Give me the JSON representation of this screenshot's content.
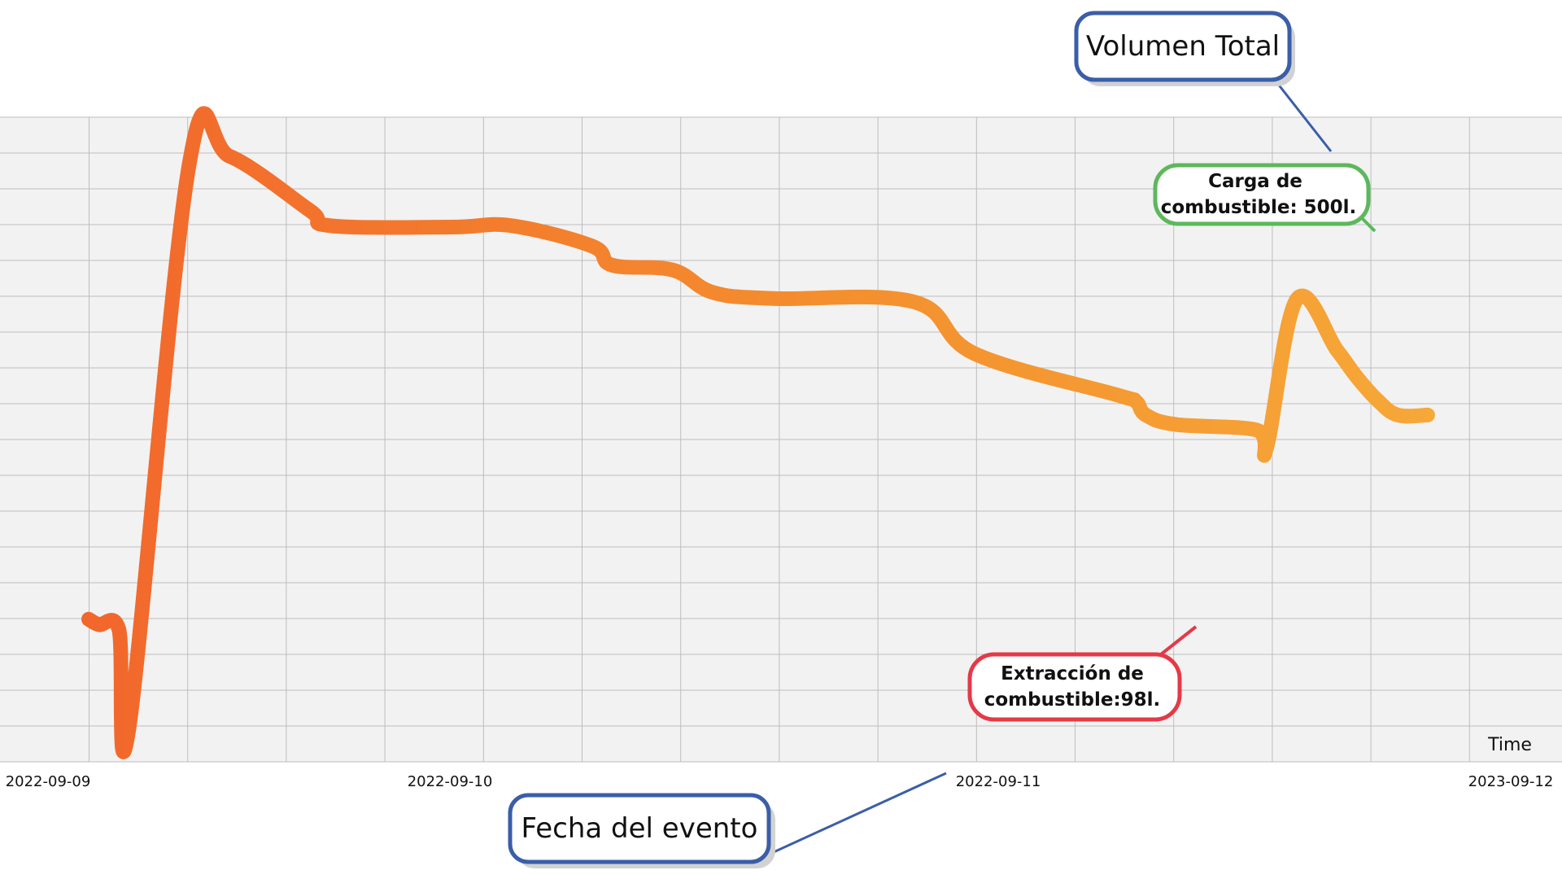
{
  "chart_data": {
    "type": "line",
    "x": [
      "2022-09-09 00:00",
      "2022-09-09 00:30",
      "2022-09-09 01:30",
      "2022-09-09 02:00",
      "2022-09-09 05:00",
      "2022-09-09 07:00",
      "2022-09-09 11:00",
      "2022-09-09 12:00",
      "2022-09-09 18:00",
      "2022-09-09 21:00",
      "2022-09-10 01:00",
      "2022-09-10 02:00",
      "2022-09-10 05:00",
      "2022-09-10 07:00",
      "2022-09-10 10:00",
      "2022-09-10 17:00",
      "2022-09-10 20:00",
      "2022-09-11 03:00",
      "2022-09-11 04:00",
      "2022-09-11 04:30",
      "2022-09-11 06:00",
      "2022-09-11 10:00",
      "2022-09-11 10:30",
      "2022-09-11 12:00",
      "2022-09-11 14:00",
      "2022-09-11 15:00",
      "2022-09-11 16:00",
      "2022-09-11 17:00",
      "2022-09-11 18:30"
    ],
    "series": [
      {
        "values": [
          170,
          162,
          155,
          10,
          840,
          850,
          770,
          748,
          746,
          748,
          718,
          690,
          683,
          650,
          641,
          636,
          560,
          500,
          490,
          470,
          456,
          448,
          422,
          640,
          565,
          525,
          492,
          470,
          470
        ]
      }
    ],
    "x_ticks": [
      "2022-09-09",
      "2022-09-10",
      "2022-09-11",
      "2023-09-12"
    ],
    "xlabel": "Time",
    "ylim": [
      0,
      900
    ],
    "grid": true
  },
  "annotations": {
    "y_axis_callout": "Volumen Total",
    "x_axis_callout": "Fecha del evento",
    "refuel_callout_line1": "Carga de",
    "refuel_callout_line2": "combustible: 500l.",
    "extraction_callout_line1": "Extracción de",
    "extraction_callout_line2": "combustible:98l."
  },
  "colors": {
    "line_start": "#f2622c",
    "line_mid": "#f4902e",
    "line_end": "#f7ad3a",
    "plot_background": "#f2f2f2",
    "grid": "#bdbdbd",
    "callout_blue": "#3a5ea8",
    "callout_green": "#5cb85c",
    "callout_red": "#e53947"
  }
}
